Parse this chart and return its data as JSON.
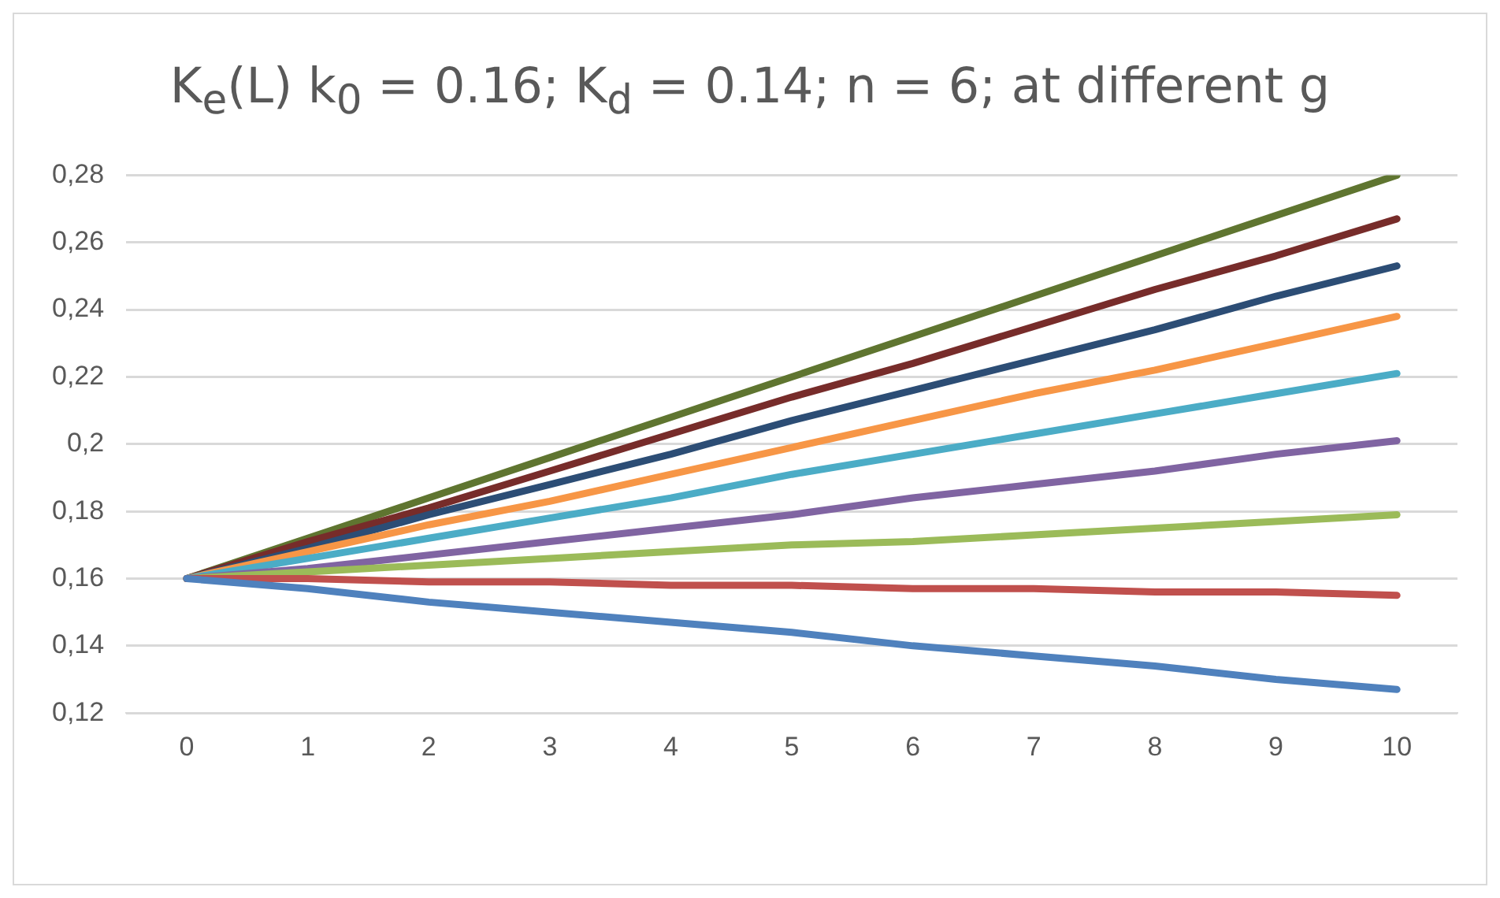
{
  "chart_data": {
    "type": "line",
    "title": "K$_{e}$(L) k$_{0}$ = 0.16; K$_{d}$ = 0.14; n = 6; at different g",
    "categories": [
      "0",
      "1",
      "2",
      "3",
      "4",
      "5",
      "6",
      "7",
      "8",
      "9",
      "10"
    ],
    "series": [
      {
        "color": "#4f81bd",
        "values": [
          0.16,
          0.157,
          0.153,
          0.15,
          0.147,
          0.144,
          0.14,
          0.137,
          0.134,
          0.13,
          0.127
        ]
      },
      {
        "color": "#c0504d",
        "values": [
          0.16,
          0.16,
          0.159,
          0.159,
          0.158,
          0.158,
          0.157,
          0.157,
          0.156,
          0.156,
          0.155
        ]
      },
      {
        "color": "#9bbb59",
        "values": [
          0.16,
          0.162,
          0.164,
          0.166,
          0.168,
          0.17,
          0.171,
          0.173,
          0.175,
          0.177,
          0.179
        ]
      },
      {
        "color": "#8064a2",
        "values": [
          0.16,
          0.163,
          0.167,
          0.171,
          0.175,
          0.179,
          0.184,
          0.188,
          0.192,
          0.197,
          0.201
        ]
      },
      {
        "color": "#4bacc6",
        "values": [
          0.16,
          0.166,
          0.172,
          0.178,
          0.184,
          0.191,
          0.197,
          0.203,
          0.209,
          0.215,
          0.221
        ]
      },
      {
        "color": "#f79646",
        "values": [
          0.16,
          0.168,
          0.176,
          0.183,
          0.191,
          0.199,
          0.207,
          0.215,
          0.222,
          0.23,
          0.238
        ]
      },
      {
        "color": "#2c4d75",
        "values": [
          0.16,
          0.169,
          0.179,
          0.188,
          0.197,
          0.207,
          0.216,
          0.225,
          0.234,
          0.244,
          0.253
        ]
      },
      {
        "color": "#772c2a",
        "values": [
          0.16,
          0.171,
          0.181,
          0.192,
          0.203,
          0.214,
          0.224,
          0.235,
          0.246,
          0.256,
          0.267
        ]
      },
      {
        "color": "#5f7530",
        "values": [
          0.16,
          0.172,
          0.184,
          0.196,
          0.208,
          0.22,
          0.232,
          0.244,
          0.256,
          0.268,
          0.28
        ]
      }
    ],
    "ylim": [
      0.12,
      0.28
    ],
    "yticks": [
      {
        "value": 0.12,
        "label": "0,12"
      },
      {
        "value": 0.14,
        "label": "0,14"
      },
      {
        "value": 0.16,
        "label": "0,16"
      },
      {
        "value": 0.18,
        "label": "0,18"
      },
      {
        "value": 0.2,
        "label": "0,2"
      },
      {
        "value": 0.22,
        "label": "0,22"
      },
      {
        "value": 0.24,
        "label": "0,24"
      },
      {
        "value": 0.26,
        "label": "0,26"
      },
      {
        "value": 0.28,
        "label": "0,28"
      }
    ],
    "grid": "y",
    "legend": false,
    "marker": "none",
    "line_style": "solid"
  }
}
